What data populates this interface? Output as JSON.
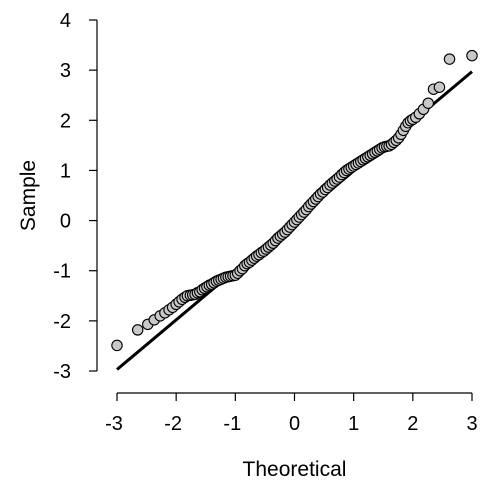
{
  "chart_data": {
    "type": "scatter",
    "title": "",
    "xlabel": "Theoretical",
    "ylabel": "Sample",
    "xlim": [
      -3,
      3
    ],
    "ylim": [
      -3,
      4
    ],
    "x_ticks": [
      "-3",
      "-2",
      "-1",
      "0",
      "1",
      "2",
      "3"
    ],
    "y_ticks": [
      "-3",
      "-2",
      "-1",
      "0",
      "1",
      "2",
      "3",
      "4"
    ],
    "grid": false,
    "point_color": "#c8c8c8",
    "point_edge_color": "#000000",
    "reference_line": {
      "from": [
        -3,
        -2.97
      ],
      "to": [
        3,
        2.97
      ],
      "color": "#000000"
    },
    "points": [
      [
        -3.0,
        -2.49
      ],
      [
        -2.65,
        -2.18
      ],
      [
        -2.48,
        -2.07
      ],
      [
        -2.37,
        -1.98
      ],
      [
        -2.27,
        -1.9
      ],
      [
        -2.19,
        -1.84
      ],
      [
        -2.12,
        -1.78
      ],
      [
        -2.06,
        -1.73
      ],
      [
        -2.0,
        -1.67
      ],
      [
        -1.95,
        -1.62
      ],
      [
        -1.9,
        -1.57
      ],
      [
        -1.85,
        -1.53
      ],
      [
        -1.81,
        -1.5
      ],
      [
        -1.76,
        -1.49
      ],
      [
        -1.72,
        -1.48
      ],
      [
        -1.68,
        -1.47
      ],
      [
        -1.64,
        -1.44
      ],
      [
        -1.6,
        -1.42
      ],
      [
        -1.56,
        -1.38
      ],
      [
        -1.52,
        -1.35
      ],
      [
        -1.48,
        -1.32
      ],
      [
        -1.44,
        -1.29
      ],
      [
        -1.4,
        -1.27
      ],
      [
        -1.36,
        -1.24
      ],
      [
        -1.32,
        -1.21
      ],
      [
        -1.28,
        -1.19
      ],
      [
        -1.24,
        -1.17
      ],
      [
        -1.2,
        -1.15
      ],
      [
        -1.16,
        -1.13
      ],
      [
        -1.12,
        -1.12
      ],
      [
        -1.08,
        -1.11
      ],
      [
        -1.04,
        -1.1
      ],
      [
        -1.0,
        -1.09
      ],
      [
        -0.96,
        -1.05
      ],
      [
        -0.92,
        -1.0
      ],
      [
        -0.88,
        -0.96
      ],
      [
        -0.84,
        -0.9
      ],
      [
        -0.8,
        -0.86
      ],
      [
        -0.76,
        -0.83
      ],
      [
        -0.72,
        -0.79
      ],
      [
        -0.68,
        -0.75
      ],
      [
        -0.64,
        -0.71
      ],
      [
        -0.6,
        -0.68
      ],
      [
        -0.56,
        -0.64
      ],
      [
        -0.52,
        -0.61
      ],
      [
        -0.48,
        -0.57
      ],
      [
        -0.44,
        -0.53
      ],
      [
        -0.4,
        -0.49
      ],
      [
        -0.36,
        -0.45
      ],
      [
        -0.32,
        -0.4
      ],
      [
        -0.28,
        -0.35
      ],
      [
        -0.24,
        -0.31
      ],
      [
        -0.2,
        -0.27
      ],
      [
        -0.16,
        -0.23
      ],
      [
        -0.12,
        -0.18
      ],
      [
        -0.08,
        -0.13
      ],
      [
        -0.04,
        -0.08
      ],
      [
        0.0,
        -0.03
      ],
      [
        0.04,
        0.02
      ],
      [
        0.08,
        0.07
      ],
      [
        0.12,
        0.12
      ],
      [
        0.16,
        0.17
      ],
      [
        0.2,
        0.22
      ],
      [
        0.24,
        0.28
      ],
      [
        0.28,
        0.33
      ],
      [
        0.32,
        0.38
      ],
      [
        0.36,
        0.43
      ],
      [
        0.4,
        0.48
      ],
      [
        0.44,
        0.53
      ],
      [
        0.48,
        0.57
      ],
      [
        0.52,
        0.62
      ],
      [
        0.56,
        0.66
      ],
      [
        0.6,
        0.71
      ],
      [
        0.64,
        0.75
      ],
      [
        0.68,
        0.79
      ],
      [
        0.72,
        0.83
      ],
      [
        0.76,
        0.87
      ],
      [
        0.8,
        0.92
      ],
      [
        0.84,
        0.96
      ],
      [
        0.88,
        1.0
      ],
      [
        0.92,
        1.03
      ],
      [
        0.96,
        1.06
      ],
      [
        1.0,
        1.09
      ],
      [
        1.04,
        1.12
      ],
      [
        1.08,
        1.15
      ],
      [
        1.12,
        1.18
      ],
      [
        1.16,
        1.21
      ],
      [
        1.2,
        1.24
      ],
      [
        1.24,
        1.27
      ],
      [
        1.28,
        1.3
      ],
      [
        1.32,
        1.33
      ],
      [
        1.36,
        1.36
      ],
      [
        1.4,
        1.39
      ],
      [
        1.44,
        1.42
      ],
      [
        1.48,
        1.45
      ],
      [
        1.52,
        1.47
      ],
      [
        1.56,
        1.48
      ],
      [
        1.6,
        1.49
      ],
      [
        1.64,
        1.52
      ],
      [
        1.68,
        1.56
      ],
      [
        1.72,
        1.6
      ],
      [
        1.76,
        1.65
      ],
      [
        1.8,
        1.72
      ],
      [
        1.84,
        1.8
      ],
      [
        1.88,
        1.88
      ],
      [
        1.92,
        1.95
      ],
      [
        1.96,
        1.99
      ],
      [
        2.0,
        2.02
      ],
      [
        2.05,
        2.06
      ],
      [
        2.11,
        2.13
      ],
      [
        2.18,
        2.22
      ],
      [
        2.26,
        2.34
      ],
      [
        2.35,
        2.62
      ],
      [
        2.45,
        2.66
      ],
      [
        2.62,
        3.22
      ],
      [
        3.0,
        3.29
      ]
    ]
  }
}
